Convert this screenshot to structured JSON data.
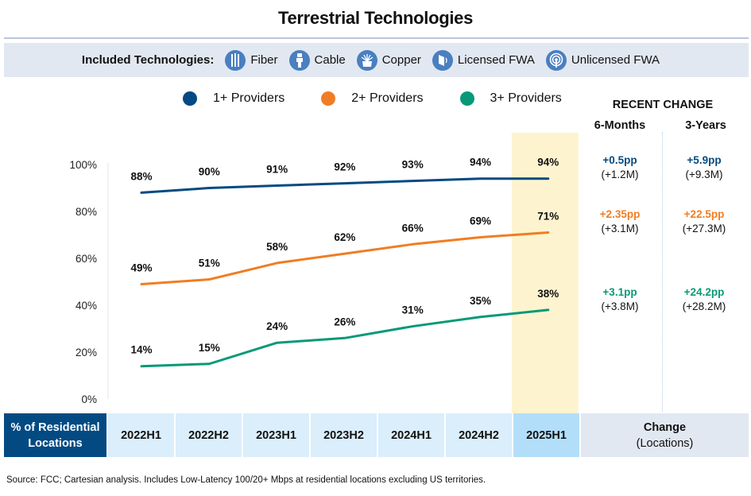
{
  "title": "Terrestrial Technologies",
  "technologies": {
    "label": "Included Technologies:",
    "items": [
      {
        "name": "Fiber",
        "icon": "fiber-icon"
      },
      {
        "name": "Cable",
        "icon": "cable-icon"
      },
      {
        "name": "Copper",
        "icon": "copper-icon"
      },
      {
        "name": "Licensed FWA",
        "icon": "licensed-fwa-icon"
      },
      {
        "name": "Unlicensed FWA",
        "icon": "unlicensed-fwa-icon"
      }
    ],
    "icon_color": "#4a7fc0"
  },
  "recent_change": {
    "title": "RECENT CHANGE",
    "columns": [
      "6-Months",
      "3-Years"
    ],
    "rows": [
      {
        "series": "1+ Providers",
        "six_months_pp": "+0.5pp",
        "six_months_loc": "(+1.2M)",
        "three_years_pp": "+5.9pp",
        "three_years_loc": "(+9.3M)"
      },
      {
        "series": "2+ Providers",
        "six_months_pp": "+2.35pp",
        "six_months_loc": "(+3.1M)",
        "three_years_pp": "+22.5pp",
        "three_years_loc": "(+27.3M)"
      },
      {
        "series": "3+ Providers",
        "six_months_pp": "+3.1pp",
        "six_months_loc": "(+3.8M)",
        "three_years_pp": "+24.2pp",
        "three_years_loc": "(+28.2M)"
      }
    ]
  },
  "table": {
    "row_header": "% of Residential Locations",
    "row_header_line1": "% of Residential",
    "row_header_line2": "Locations",
    "change_line1": "Change",
    "change_line2": "(Locations)"
  },
  "footer": "Source: FCC; Cartesian analysis. Includes Low-Latency 100/20+ Mbps at residential locations excluding US territories.",
  "chart_data": {
    "type": "line",
    "title": "Terrestrial Technologies",
    "xlabel": "% of Residential Locations",
    "ylabel": "",
    "categories": [
      "2022H1",
      "2022H2",
      "2023H1",
      "2023H2",
      "2024H1",
      "2024H2",
      "2025H1"
    ],
    "highlighted_category": "2025H1",
    "highlight_color": "#fdf4cf",
    "ylim": [
      0,
      100
    ],
    "yticks": [
      "0%",
      "20%",
      "40%",
      "60%",
      "80%",
      "100%"
    ],
    "ytick_values": [
      0,
      20,
      40,
      60,
      80,
      100
    ],
    "grid": false,
    "legend_position": "top",
    "series": [
      {
        "name": "1+ Providers",
        "color": "#044a82",
        "values": [
          88,
          90,
          91,
          92,
          93,
          94,
          94
        ],
        "labels": [
          "88%",
          "90%",
          "91%",
          "92%",
          "93%",
          "94%",
          "94%"
        ]
      },
      {
        "name": "2+ Providers",
        "color": "#f07d23",
        "values": [
          49,
          51,
          58,
          62,
          66,
          69,
          71
        ],
        "labels": [
          "49%",
          "51%",
          "58%",
          "62%",
          "66%",
          "69%",
          "71%"
        ]
      },
      {
        "name": "3+ Providers",
        "color": "#079977",
        "values": [
          14,
          15,
          24,
          26,
          31,
          35,
          38
        ],
        "labels": [
          "14%",
          "15%",
          "24%",
          "26%",
          "31%",
          "35%",
          "38%"
        ]
      }
    ]
  }
}
